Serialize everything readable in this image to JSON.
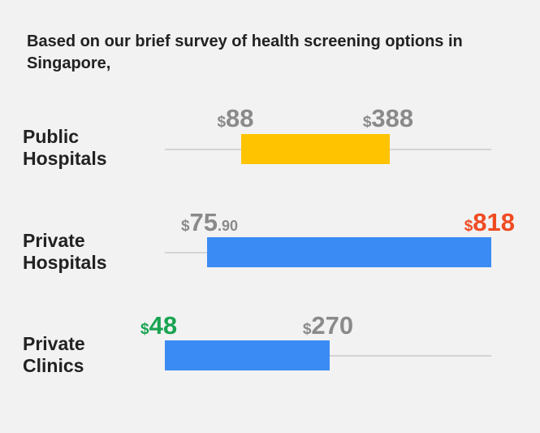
{
  "intro": "Based on our brief survey of health screening options in Singapore,",
  "colors": {
    "track": "#d4d4d4",
    "price_default": "#8a8a8a",
    "price_high": "#ef4b23",
    "price_low": "#1aa452"
  },
  "chart_data": {
    "type": "bar",
    "subtype": "floating-range",
    "title": "Based on our brief survey of health screening options in Singapore,",
    "currency": "$",
    "categories": [
      "Public Hospitals",
      "Private Hospitals",
      "Private Clinics"
    ],
    "rows": [
      {
        "label_lines": [
          "Public",
          "Hospitals"
        ],
        "min": 88,
        "max": 388,
        "min_text": {
          "cur": "$",
          "amt": "88",
          "dec": ""
        },
        "max_text": {
          "cur": "$",
          "amt": "388",
          "dec": ""
        },
        "bar_color": "#ffc300",
        "min_color": "#8a8a8a",
        "max_color": "#8a8a8a"
      },
      {
        "label_lines": [
          "Private",
          "Hospitals"
        ],
        "min": 75.9,
        "max": 818,
        "min_text": {
          "cur": "$",
          "amt": "75",
          "dec": ".90"
        },
        "max_text": {
          "cur": "$",
          "amt": "818",
          "dec": ""
        },
        "bar_color": "#3b8bf5",
        "min_color": "#8a8a8a",
        "max_color": "#ef4b23"
      },
      {
        "label_lines": [
          "Private",
          "Clinics"
        ],
        "min": 48,
        "max": 270,
        "min_text": {
          "cur": "$",
          "amt": "48",
          "dec": ""
        },
        "max_text": {
          "cur": "$",
          "amt": "270",
          "dec": ""
        },
        "bar_color": "#3b8bf5",
        "min_color": "#1aa452",
        "max_color": "#8a8a8a"
      }
    ],
    "xlabel": "",
    "ylabel": ""
  }
}
